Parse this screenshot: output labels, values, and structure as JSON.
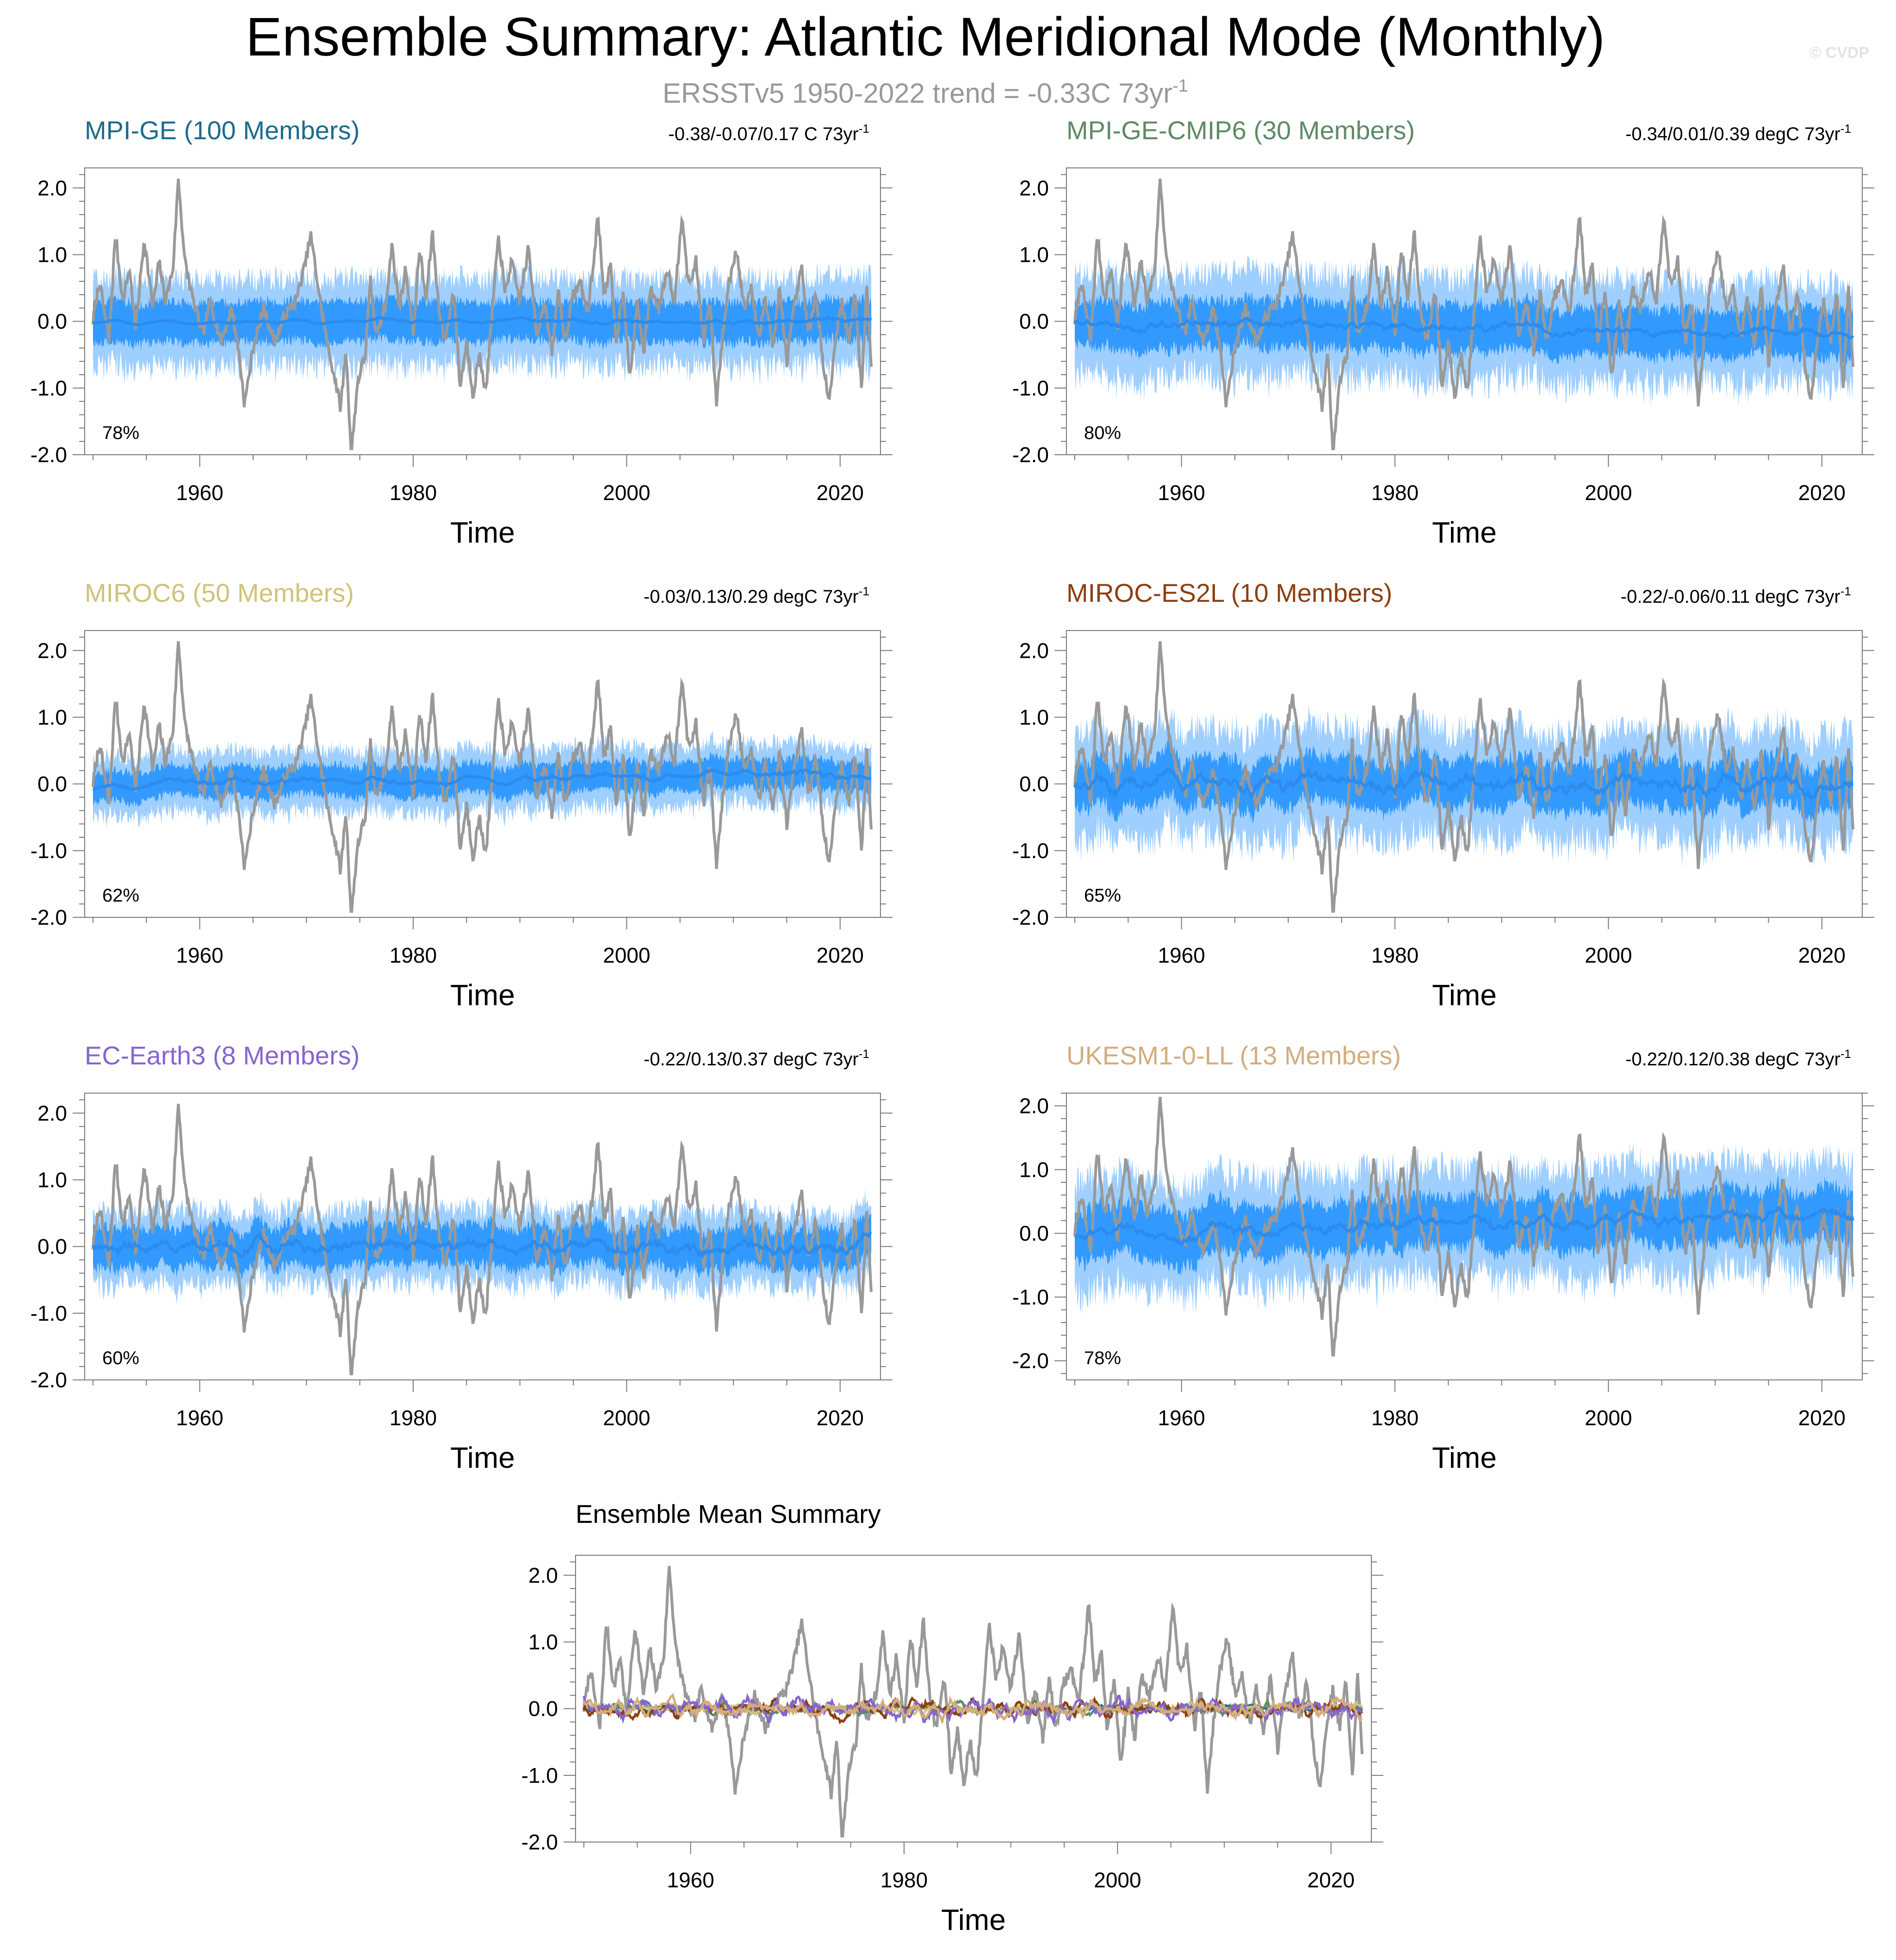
{
  "title": "Ensemble Summary: Atlantic Meridional Mode (Monthly)",
  "subtitle": {
    "main": "ERSSTv5 1950-2022 trend = -0.33C 73yr",
    "sup": "-1"
  },
  "watermark": "© CVDP",
  "colors": {
    "observation": "#999999",
    "ensemble_mean": "#2b8cee",
    "spread_inner": "#1e90ff",
    "spread_outer": "#9fcfff",
    "MPI-GE": "#1d6b8c",
    "MPI-GE-CMIP6": "#5e8a66",
    "MIROC6": "#cfc37a",
    "MIROC-ES2L": "#8b3f12",
    "EC-Earth3": "#8565d0",
    "UKESM1-0-LL": "#d2ad7e"
  },
  "chart_data": [
    {
      "type": "area",
      "title": "MPI-GE (100 Members)",
      "trend_text": "-0.38/-0.07/0.17 C 73yr",
      "trend_sup": "-1",
      "pct": "78%",
      "xlabel": "Time",
      "ylabel": "",
      "xlim": [
        1950,
        2023
      ],
      "ylim": [
        -2.0,
        2.3
      ],
      "x_ticks": [
        "1960",
        "1980",
        "2000",
        "2020"
      ],
      "y_ticks": [
        "2.0",
        "1.0",
        "0.0",
        "-1.0",
        "-2.0"
      ],
      "ensemble_mean": {
        "amp": 0.06,
        "end": 0.0
      },
      "spread": {
        "inner": 0.3,
        "outer": 0.65
      }
    },
    {
      "type": "area",
      "title": "MPI-GE-CMIP6 (30 Members)",
      "trend_text": "-0.34/0.01/0.39 degC 73yr",
      "trend_sup": "-1",
      "pct": "80%",
      "xlabel": "Time",
      "ylabel": "",
      "xlim": [
        1950,
        2023
      ],
      "ylim": [
        -2.0,
        2.3
      ],
      "x_ticks": [
        "1960",
        "1980",
        "2000",
        "2020"
      ],
      "y_ticks": [
        "2.0",
        "1.0",
        "0.0",
        "-1.0",
        "-2.0"
      ],
      "ensemble_mean": {
        "amp": 0.15,
        "end": -0.2
      },
      "spread": {
        "inner": 0.35,
        "outer": 0.75
      }
    },
    {
      "type": "area",
      "title": "MIROC6 (50 Members)",
      "trend_text": "-0.03/0.13/0.29 degC 73yr",
      "trend_sup": "-1",
      "pct": "62%",
      "xlabel": "Time",
      "ylabel": "",
      "xlim": [
        1950,
        2023
      ],
      "ylim": [
        -2.0,
        2.3
      ],
      "x_ticks": [
        "1960",
        "1980",
        "2000",
        "2020"
      ],
      "y_ticks": [
        "2.0",
        "1.0",
        "0.0",
        "-1.0",
        "-2.0"
      ],
      "ensemble_mean": {
        "amp": 0.1,
        "end": 0.15
      },
      "spread": {
        "inner": 0.22,
        "outer": 0.45
      }
    },
    {
      "type": "area",
      "title": "MIROC-ES2L (10 Members)",
      "trend_text": "-0.22/-0.06/0.11 degC 73yr",
      "trend_sup": "-1",
      "pct": "65%",
      "xlabel": "Time",
      "ylabel": "",
      "xlim": [
        1950,
        2023
      ],
      "ylim": [
        -2.0,
        2.3
      ],
      "x_ticks": [
        "1960",
        "1980",
        "2000",
        "2020"
      ],
      "y_ticks": [
        "2.0",
        "1.0",
        "0.0",
        "-1.0",
        "-2.0"
      ],
      "ensemble_mean": {
        "amp": 0.22,
        "end": 0.0
      },
      "spread": {
        "inner": 0.35,
        "outer": 0.8
      }
    },
    {
      "type": "area",
      "title": "EC-Earth3 (8 Members)",
      "trend_text": "-0.22/0.13/0.37 degC 73yr",
      "trend_sup": "-1",
      "pct": "60%",
      "xlabel": "Time",
      "ylabel": "",
      "xlim": [
        1950,
        2023
      ],
      "ylim": [
        -2.0,
        2.3
      ],
      "x_ticks": [
        "1960",
        "1980",
        "2000",
        "2020"
      ],
      "y_ticks": [
        "2.0",
        "1.0",
        "0.0",
        "-1.0",
        "-2.0"
      ],
      "ensemble_mean": {
        "amp": 0.2,
        "end": 0.0
      },
      "spread": {
        "inner": 0.3,
        "outer": 0.55
      }
    },
    {
      "type": "area",
      "title": "UKESM1-0-LL (13 Members)",
      "trend_text": "-0.22/0.12/0.38 degC 73yr",
      "trend_sup": "-1",
      "pct": "78%",
      "xlabel": "Time",
      "ylabel": "",
      "xlim": [
        1950,
        2023
      ],
      "ylim": [
        -2.3,
        2.2
      ],
      "x_ticks": [
        "1960",
        "1980",
        "2000",
        "2020"
      ],
      "y_ticks": [
        "2.0",
        "1.0",
        "0.0",
        "-1.0",
        "-2.0"
      ],
      "ensemble_mean": {
        "amp": 0.2,
        "end": 0.3
      },
      "spread": {
        "inner": 0.4,
        "outer": 0.85
      }
    },
    {
      "type": "line",
      "title": "Ensemble Mean Summary",
      "xlabel": "Time",
      "ylabel": "",
      "xlim": [
        1950,
        2023
      ],
      "ylim": [
        -2.0,
        2.3
      ],
      "x_ticks": [
        "1960",
        "1980",
        "2000",
        "2020"
      ],
      "y_ticks": [
        "2.0",
        "1.0",
        "0.0",
        "-1.0",
        "-2.0"
      ],
      "series": [
        {
          "name": "MPI-GE",
          "amp": 0.06
        },
        {
          "name": "MPI-GE-CMIP6",
          "amp": 0.12
        },
        {
          "name": "MIROC6",
          "amp": 0.1
        },
        {
          "name": "MIROC-ES2L",
          "amp": 0.2
        },
        {
          "name": "EC-Earth3",
          "amp": 0.2
        },
        {
          "name": "UKESM1-0-LL",
          "amp": 0.2
        }
      ]
    }
  ],
  "observation_anchors": [
    [
      1950.0,
      0.0
    ],
    [
      1950.6,
      0.6
    ],
    [
      1951.5,
      -0.3
    ],
    [
      1952.1,
      1.3
    ],
    [
      1952.8,
      0.3
    ],
    [
      1953.4,
      0.8
    ],
    [
      1954.0,
      -0.1
    ],
    [
      1954.8,
      1.25
    ],
    [
      1955.6,
      0.2
    ],
    [
      1956.2,
      0.9
    ],
    [
      1956.8,
      0.3
    ],
    [
      1957.5,
      0.8
    ],
    [
      1958.0,
      2.15
    ],
    [
      1958.6,
      0.9
    ],
    [
      1959.4,
      0.3
    ],
    [
      1960.3,
      -0.2
    ],
    [
      1961.0,
      0.3
    ],
    [
      1962.0,
      -0.3
    ],
    [
      1963.0,
      0.2
    ],
    [
      1963.7,
      -0.5
    ],
    [
      1964.2,
      -1.25
    ],
    [
      1965.0,
      -0.4
    ],
    [
      1966.0,
      0.2
    ],
    [
      1967.0,
      -0.3
    ],
    [
      1968.0,
      0.1
    ],
    [
      1969.0,
      0.3
    ],
    [
      1969.8,
      0.8
    ],
    [
      1970.4,
      1.3
    ],
    [
      1971.2,
      0.4
    ],
    [
      1972.0,
      -0.4
    ],
    [
      1972.6,
      -0.8
    ],
    [
      1973.2,
      -1.3
    ],
    [
      1973.7,
      -0.4
    ],
    [
      1974.2,
      -2.0
    ],
    [
      1974.8,
      -0.9
    ],
    [
      1975.5,
      -0.5
    ],
    [
      1976.0,
      0.6
    ],
    [
      1976.5,
      -0.2
    ],
    [
      1977.5,
      0.3
    ],
    [
      1978.0,
      1.15
    ],
    [
      1978.7,
      0.2
    ],
    [
      1979.3,
      0.8
    ],
    [
      1980.0,
      -0.2
    ],
    [
      1980.6,
      1.1
    ],
    [
      1981.2,
      0.3
    ],
    [
      1981.8,
      1.35
    ],
    [
      1982.4,
      0.2
    ],
    [
      1983.0,
      -0.3
    ],
    [
      1983.8,
      0.5
    ],
    [
      1984.4,
      -1.0
    ],
    [
      1985.0,
      -0.3
    ],
    [
      1985.6,
      -1.1
    ],
    [
      1986.2,
      -0.5
    ],
    [
      1986.8,
      -1.05
    ],
    [
      1987.5,
      0.3
    ],
    [
      1988.0,
      1.3
    ],
    [
      1988.6,
      0.4
    ],
    [
      1989.2,
      0.9
    ],
    [
      1990.0,
      0.3
    ],
    [
      1990.8,
      1.1
    ],
    [
      1991.6,
      -0.2
    ],
    [
      1992.3,
      0.3
    ],
    [
      1993.0,
      -0.5
    ],
    [
      1993.6,
      0.5
    ],
    [
      1994.2,
      -0.3
    ],
    [
      1995.0,
      0.4
    ],
    [
      1995.7,
      0.6
    ],
    [
      1996.3,
      0.1
    ],
    [
      1996.8,
      0.7
    ],
    [
      1997.3,
      1.6
    ],
    [
      1997.9,
      0.4
    ],
    [
      1998.5,
      0.8
    ],
    [
      1999.0,
      -0.3
    ],
    [
      1999.7,
      0.5
    ],
    [
      2000.3,
      -0.9
    ],
    [
      2001.0,
      0.3
    ],
    [
      2001.6,
      -0.5
    ],
    [
      2002.2,
      0.5
    ],
    [
      2003.0,
      0.2
    ],
    [
      2003.8,
      0.8
    ],
    [
      2004.5,
      0.3
    ],
    [
      2005.2,
      1.65
    ],
    [
      2005.8,
      0.5
    ],
    [
      2006.5,
      0.9
    ],
    [
      2007.2,
      -0.3
    ],
    [
      2007.8,
      0.3
    ],
    [
      2008.4,
      -1.25
    ],
    [
      2009.0,
      -0.2
    ],
    [
      2009.6,
      0.6
    ],
    [
      2010.3,
      1.1
    ],
    [
      2011.0,
      0.2
    ],
    [
      2011.7,
      0.5
    ],
    [
      2012.4,
      -0.3
    ],
    [
      2013.0,
      0.4
    ],
    [
      2013.7,
      -0.4
    ],
    [
      2014.3,
      0.5
    ],
    [
      2015.0,
      -0.6
    ],
    [
      2015.7,
      0.2
    ],
    [
      2016.4,
      0.8
    ],
    [
      2017.0,
      -0.2
    ],
    [
      2017.7,
      0.4
    ],
    [
      2018.4,
      -0.6
    ],
    [
      2019.0,
      -1.2
    ],
    [
      2019.6,
      -0.2
    ],
    [
      2020.2,
      0.3
    ],
    [
      2020.8,
      -0.3
    ],
    [
      2021.4,
      0.4
    ],
    [
      2022.0,
      -1.0
    ],
    [
      2022.5,
      0.5
    ],
    [
      2022.95,
      -0.7
    ]
  ]
}
